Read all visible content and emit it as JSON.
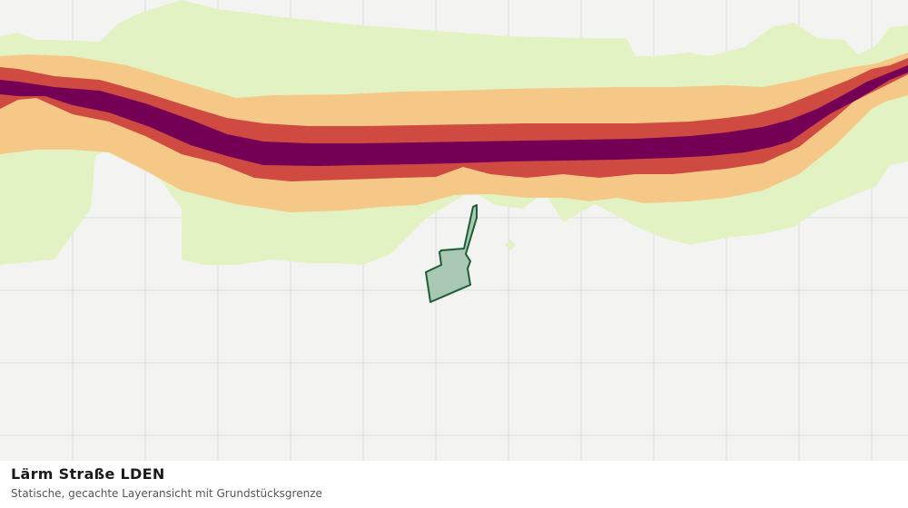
{
  "caption": {
    "title": "Lärm Straße LDEN",
    "subtitle": "Statische, gecachte Layeransicht mit Grundstücksgrenze"
  },
  "map": {
    "background_color": "#f3f4f2",
    "grid_color": "#dcdedb",
    "noise_bands": [
      {
        "name": "outer-zone",
        "color": "#e2f2c2"
      },
      {
        "name": "zone-2",
        "color": "#f5c887"
      },
      {
        "name": "zone-3",
        "color": "#cf4a40"
      },
      {
        "name": "core-zone",
        "color": "#740056"
      }
    ],
    "parcel": {
      "fill": "#a9c8b4",
      "stroke": "#1d5c35"
    }
  }
}
